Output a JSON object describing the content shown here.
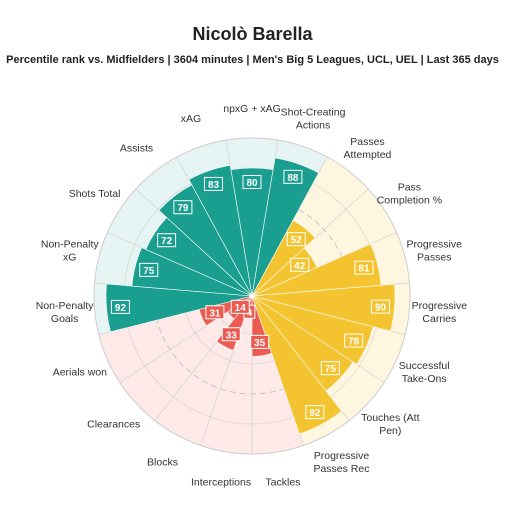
{
  "title": "Nicolò Barella",
  "subtitle": "Percentile rank vs. Midfielders | 3604 minutes | Men's Big 5 Leagues, UCL, UEL | Last 365 days",
  "colors": {
    "attacking": "#1a9e8f",
    "attacking_bg": "#e6f4f3",
    "possession": "#f4c430",
    "possession_bg": "#fff6df",
    "defending": "#ec5b51",
    "defending_bg": "#fde9e7",
    "label_text": "#ffffff",
    "grid": "#bbbbbb"
  },
  "chart_data": {
    "type": "polar-bar",
    "rmax": 100,
    "categories": [
      {
        "label": "npxG + xAG",
        "value": 80,
        "group": "attacking"
      },
      {
        "label": "Shot-Creating\nActions",
        "value": 88,
        "group": "attacking"
      },
      {
        "label": "Passes\nAttempted",
        "value": 52,
        "group": "possession"
      },
      {
        "label": "Pass\nCompletion %",
        "value": 42,
        "group": "possession"
      },
      {
        "label": "Progressive\nPasses",
        "value": 81,
        "group": "possession"
      },
      {
        "label": "Progressive\nCarries",
        "value": 90,
        "group": "possession"
      },
      {
        "label": "Successful\nTake-Ons",
        "value": 78,
        "group": "possession"
      },
      {
        "label": "Touches (Att\nPen)",
        "value": 75,
        "group": "possession"
      },
      {
        "label": "Progressive\nPasses Rec",
        "value": 92,
        "group": "possession"
      },
      {
        "label": "Tackles",
        "value": 35,
        "group": "defending"
      },
      {
        "label": "Interceptions",
        "value": 4,
        "group": "defending"
      },
      {
        "label": "Blocks",
        "value": 33,
        "group": "defending"
      },
      {
        "label": "Clearances",
        "value": 14,
        "group": "defending"
      },
      {
        "label": "Aerials won",
        "value": 31,
        "group": "defending"
      },
      {
        "label": "Non-Penalty\nGoals",
        "value": 92,
        "group": "attacking"
      },
      {
        "label": "Non-Penalty\nxG",
        "value": 75,
        "group": "attacking"
      },
      {
        "label": "Shots Total",
        "value": 72,
        "group": "attacking"
      },
      {
        "label": "Assists",
        "value": 79,
        "group": "attacking"
      },
      {
        "label": "xAG",
        "value": 83,
        "group": "attacking"
      }
    ]
  }
}
